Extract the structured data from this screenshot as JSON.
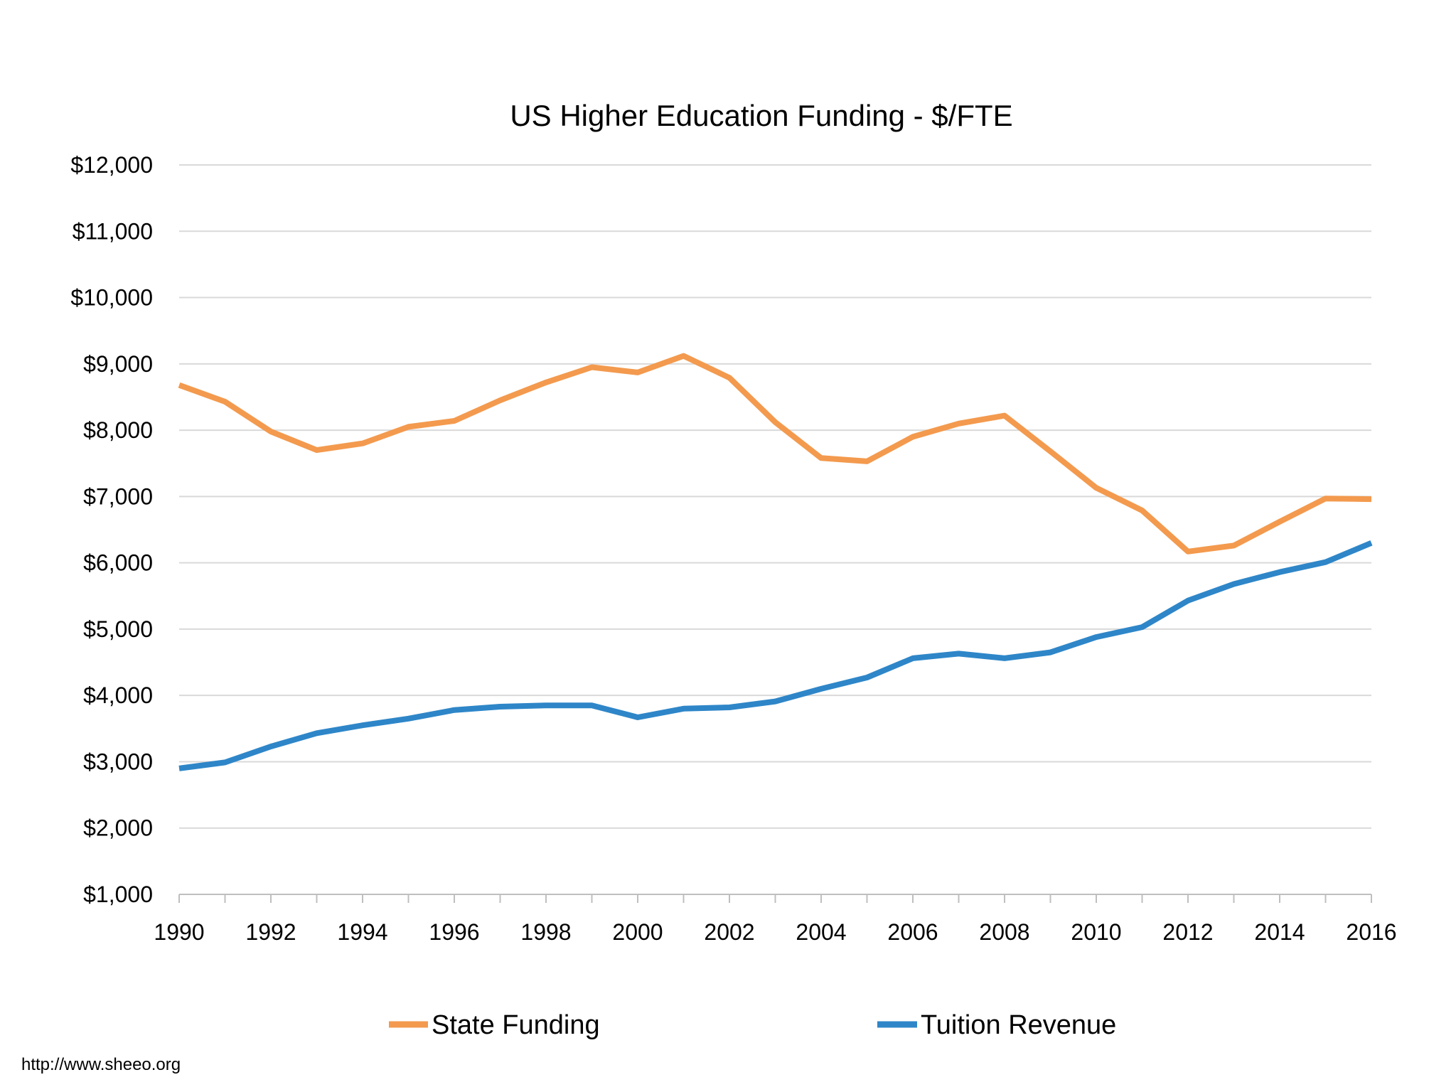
{
  "chart_data": {
    "type": "line",
    "title": "US Higher Education Funding - $/FTE",
    "xlabel": "",
    "ylabel": "",
    "x": [
      1990,
      1991,
      1992,
      1993,
      1994,
      1995,
      1996,
      1997,
      1998,
      1999,
      2000,
      2001,
      2002,
      2003,
      2004,
      2005,
      2006,
      2007,
      2008,
      2009,
      2010,
      2011,
      2012,
      2013,
      2014,
      2015,
      2016
    ],
    "x_tick_labels": [
      "1990",
      "1992",
      "1994",
      "1996",
      "1998",
      "2000",
      "2002",
      "2004",
      "2006",
      "2008",
      "2010",
      "2012",
      "2014",
      "2016"
    ],
    "y_tick_labels": [
      "$1,000",
      "$2,000",
      "$3,000",
      "$4,000",
      "$5,000",
      "$6,000",
      "$7,000",
      "$8,000",
      "$9,000",
      "$10,000",
      "$11,000",
      "$12,000"
    ],
    "ylim": [
      1000,
      12000
    ],
    "xlim": [
      1990,
      2016
    ],
    "grid": true,
    "legend_position": "bottom",
    "series": [
      {
        "name": "State Funding",
        "color": "#f39a4e",
        "values": [
          8680,
          8430,
          7980,
          7700,
          7800,
          8050,
          8140,
          8450,
          8720,
          8950,
          8870,
          9120,
          8790,
          8120,
          7580,
          7530,
          7900,
          8100,
          8220,
          7680,
          7130,
          6790,
          6170,
          6260,
          6620,
          6970,
          6960
        ]
      },
      {
        "name": "Tuition Revenue",
        "color": "#2e86c8",
        "values": [
          2900,
          2990,
          3230,
          3430,
          3550,
          3650,
          3780,
          3830,
          3850,
          3850,
          3670,
          3800,
          3820,
          3910,
          4100,
          4270,
          4560,
          4630,
          4560,
          4650,
          4880,
          5030,
          5430,
          5680,
          5860,
          6010,
          6300
        ]
      }
    ]
  },
  "source_text": "http://www.sheeo.org"
}
